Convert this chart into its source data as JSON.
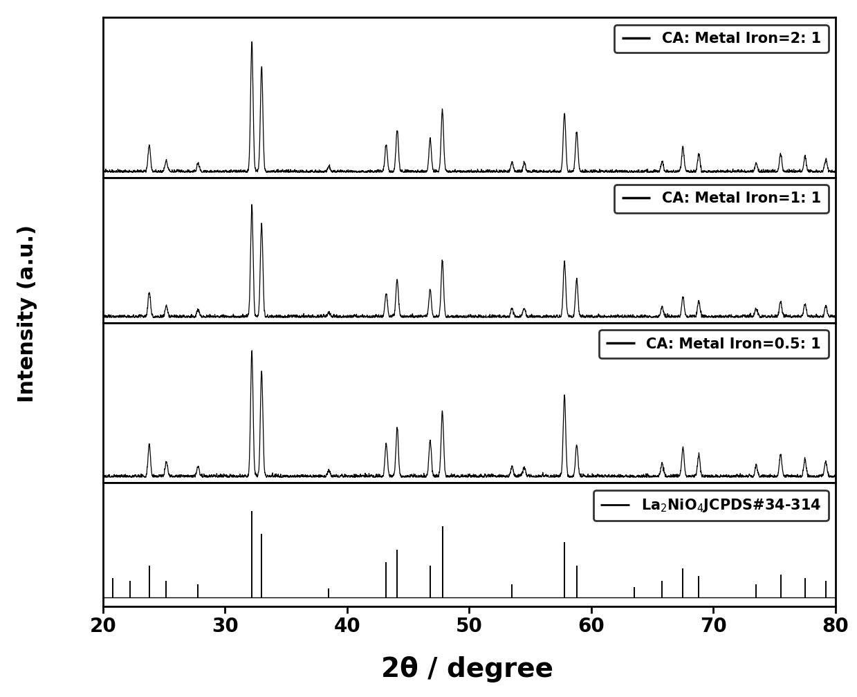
{
  "xmin": 20,
  "xmax": 80,
  "xticks": [
    20,
    30,
    40,
    50,
    60,
    70,
    80
  ],
  "xlabel": "2θ / degree",
  "ylabel": "Intensity (a.u.)",
  "xlabel_fontsize": 28,
  "ylabel_fontsize": 22,
  "tick_fontsize": 20,
  "legend_fontsize": 15,
  "background_color": "white",
  "xrd_peaks": {
    "positions": [
      23.8,
      25.2,
      27.8,
      32.2,
      33.0,
      38.5,
      43.2,
      44.1,
      46.8,
      47.8,
      53.5,
      54.5,
      57.8,
      58.8,
      65.8,
      67.5,
      68.8,
      73.5,
      75.5,
      77.5,
      79.2
    ],
    "heights_2_1": [
      0.18,
      0.08,
      0.06,
      0.88,
      0.72,
      0.04,
      0.18,
      0.28,
      0.22,
      0.42,
      0.06,
      0.06,
      0.4,
      0.28,
      0.07,
      0.16,
      0.12,
      0.06,
      0.12,
      0.1,
      0.08
    ],
    "heights_1_1": [
      0.16,
      0.07,
      0.05,
      0.72,
      0.6,
      0.03,
      0.15,
      0.24,
      0.18,
      0.36,
      0.05,
      0.05,
      0.36,
      0.24,
      0.06,
      0.13,
      0.1,
      0.05,
      0.1,
      0.08,
      0.07
    ],
    "heights_0_5_1": [
      0.2,
      0.09,
      0.06,
      0.78,
      0.65,
      0.04,
      0.2,
      0.3,
      0.22,
      0.4,
      0.06,
      0.06,
      0.5,
      0.2,
      0.08,
      0.18,
      0.13,
      0.07,
      0.14,
      0.11,
      0.09
    ],
    "ref_positions": [
      20.8,
      22.2,
      23.8,
      25.2,
      27.8,
      32.2,
      33.0,
      38.5,
      43.2,
      44.1,
      46.8,
      47.8,
      53.5,
      57.8,
      58.8,
      63.5,
      65.8,
      67.5,
      68.8,
      73.5,
      75.5,
      77.5,
      79.2
    ],
    "ref_heights": [
      0.12,
      0.1,
      0.2,
      0.1,
      0.08,
      0.55,
      0.4,
      0.05,
      0.22,
      0.3,
      0.2,
      0.45,
      0.08,
      0.35,
      0.2,
      0.06,
      0.1,
      0.18,
      0.13,
      0.08,
      0.14,
      0.12,
      0.1
    ]
  },
  "legend_labels": [
    "CA: Metal Iron=2: 1",
    "CA: Metal Iron=1: 1",
    "CA: Metal Iron=0.5: 1",
    "La$_2$NiO$_4$JCPDS#34-314"
  ]
}
